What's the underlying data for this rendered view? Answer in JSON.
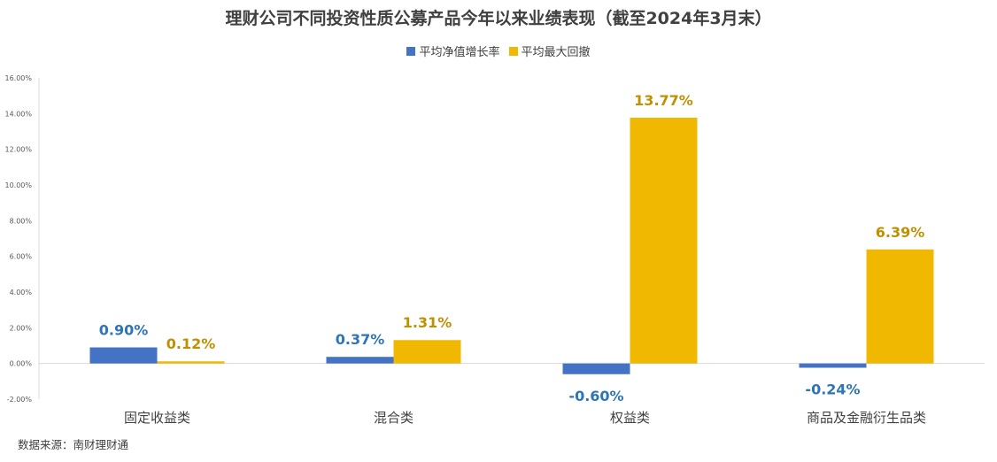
{
  "chart_data": {
    "type": "bar",
    "title": "理财公司不同投资性质公募产品今年以来业绩表现（截至2024年3月末）",
    "categories": [
      "固定收益类",
      "混合类",
      "权益类",
      "商品及金融衍生品类"
    ],
    "series": [
      {
        "name": "平均净值增长率",
        "values": [
          0.9,
          0.37,
          -0.6,
          -0.24
        ],
        "labels": [
          "0.90%",
          "0.37%",
          "-0.60%",
          "-0.24%"
        ],
        "color": "#4472C4",
        "label_color": "#2E75B6"
      },
      {
        "name": "平均最大回撤",
        "values": [
          0.12,
          1.31,
          13.77,
          6.39
        ],
        "labels": [
          "0.12%",
          "1.31%",
          "13.77%",
          "6.39%"
        ],
        "color": "#F0B800",
        "label_color": "#BF9000"
      }
    ],
    "y_ticks": [
      "16.00%",
      "14.00%",
      "12.00%",
      "10.00%",
      "8.00%",
      "6.00%",
      "4.00%",
      "2.00%",
      "0.00%",
      "-2.00%"
    ],
    "ylim": [
      -2,
      16
    ],
    "legend_position": "top-center",
    "grid": false
  },
  "source": "数据来源：南财理财通"
}
